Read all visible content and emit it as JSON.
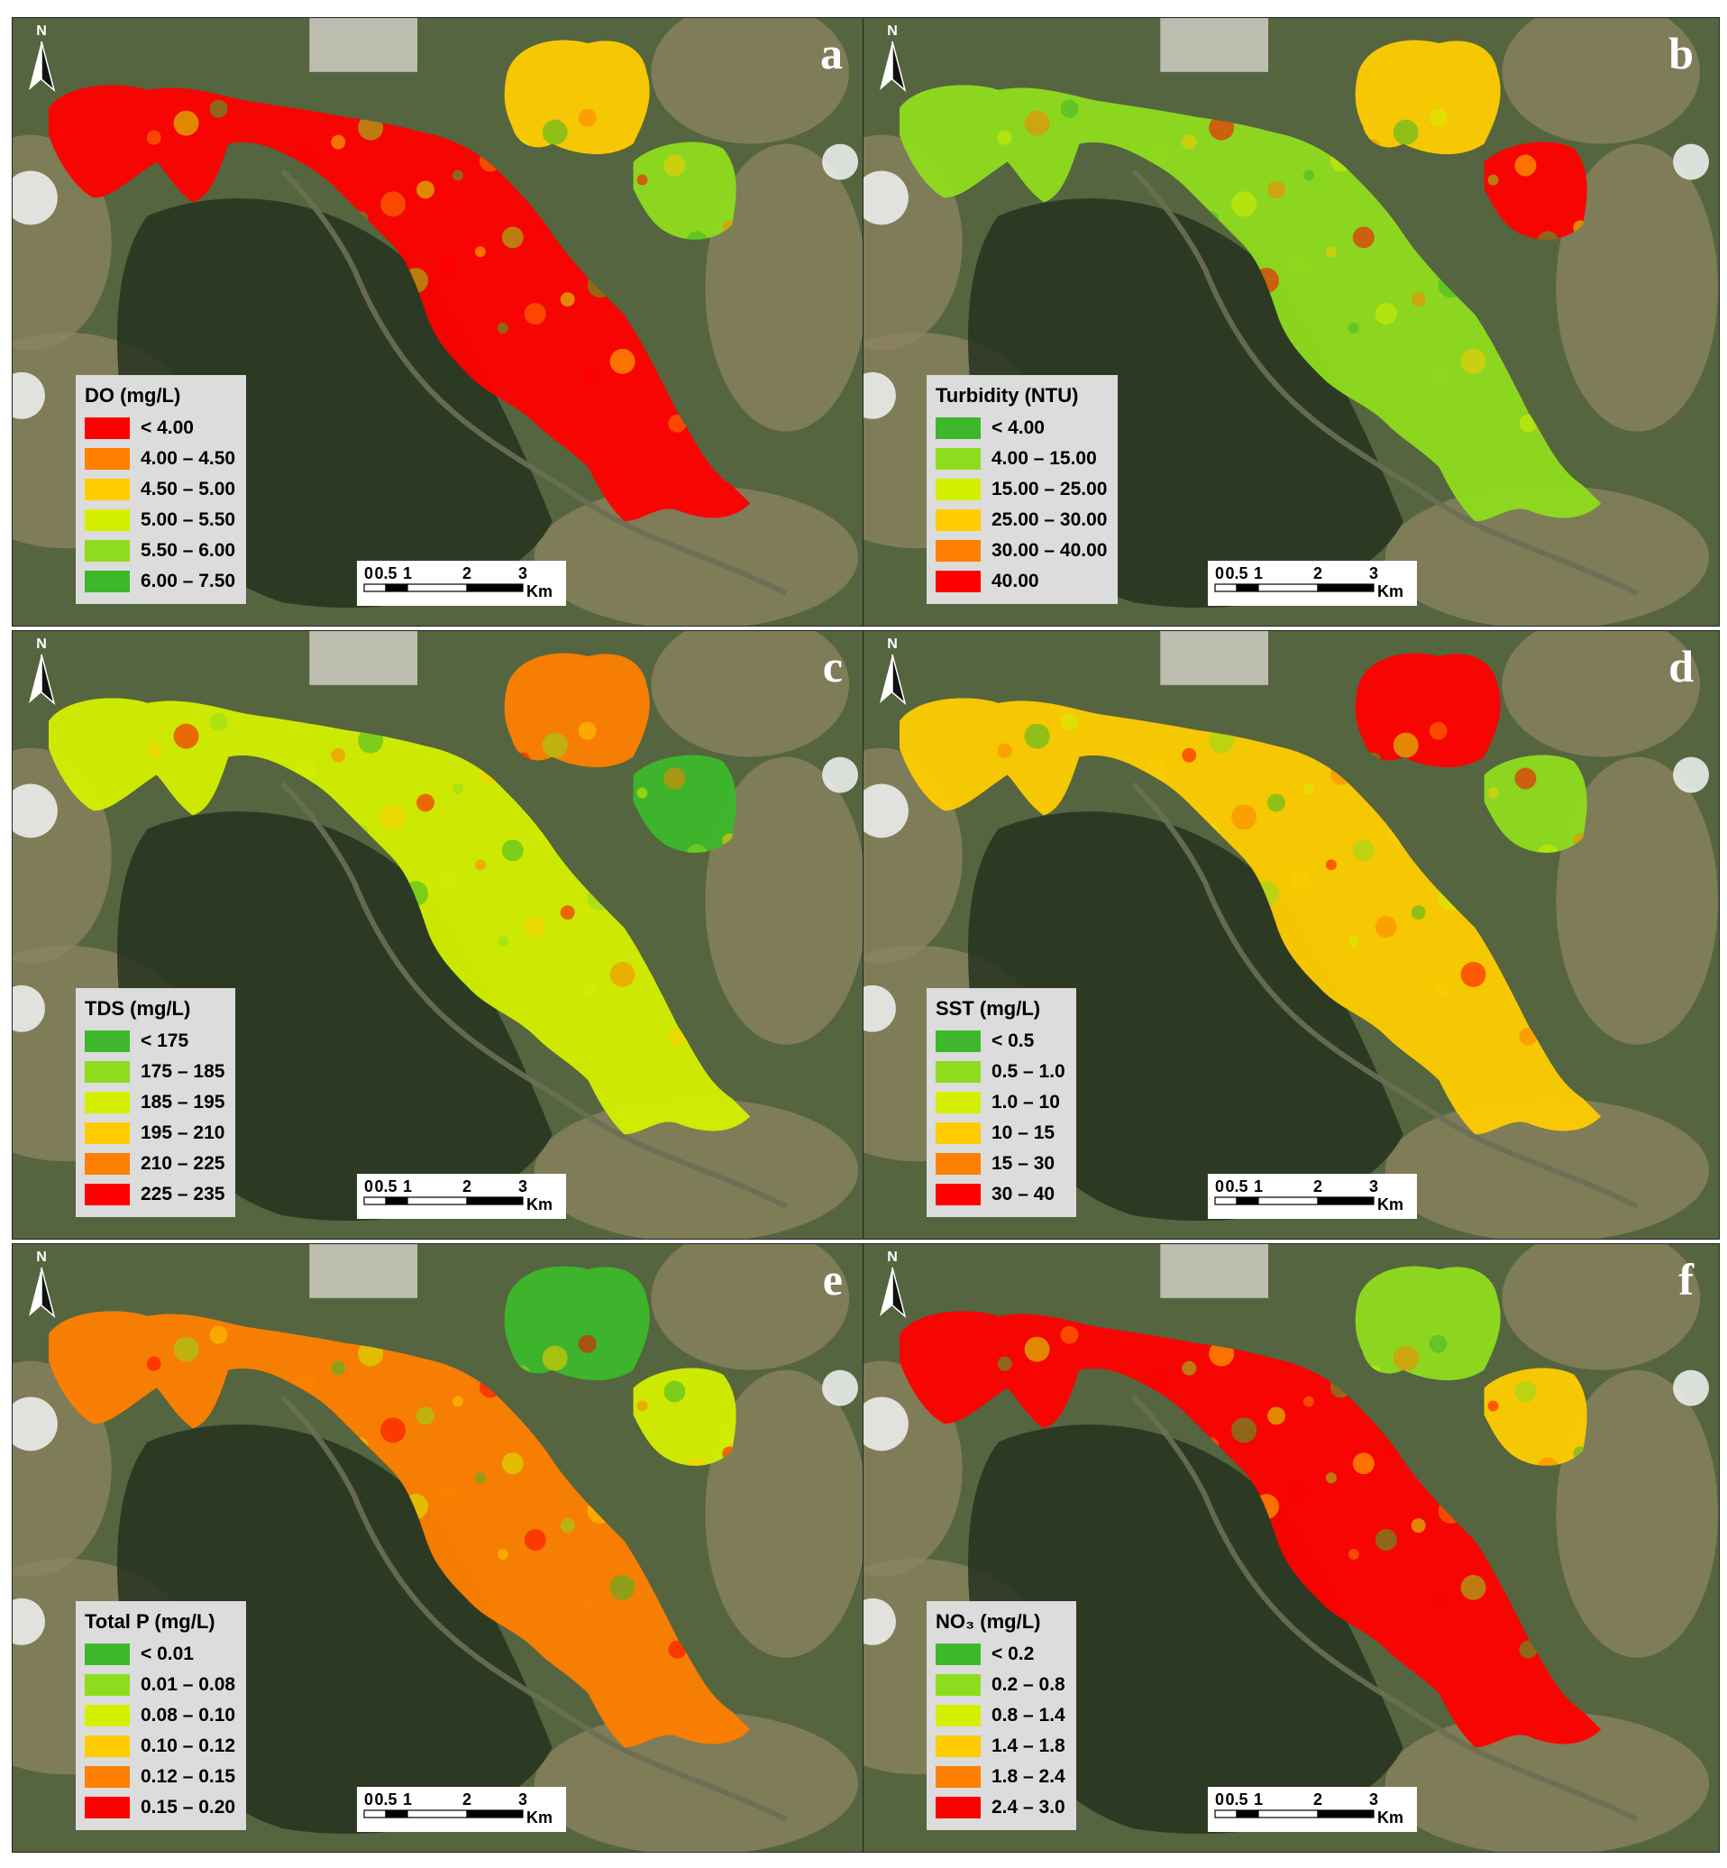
{
  "north_label": "N",
  "scale": {
    "tick_labels": [
      "0",
      "0.5",
      "1",
      "2",
      "3"
    ],
    "unit": "Km"
  },
  "panels": [
    {
      "letter": "a",
      "legend_title": "DO (mg/L)",
      "classes": [
        {
          "label": "< 4.00",
          "color": "#ff0000"
        },
        {
          "label": "4.00 – 4.50",
          "color": "#ff7f00"
        },
        {
          "label": "4.50 – 5.00",
          "color": "#ffcc00"
        },
        {
          "label": "5.00 – 5.50",
          "color": "#d4f000"
        },
        {
          "label": "5.50 – 6.00",
          "color": "#8fdc1e"
        },
        {
          "label": "6.00 – 7.50",
          "color": "#3cb82a"
        }
      ]
    },
    {
      "letter": "b",
      "legend_title": "Turbidity (NTU)",
      "classes": [
        {
          "label": "< 4.00",
          "color": "#3cb82a"
        },
        {
          "label": "4.00 – 15.00",
          "color": "#8fdc1e"
        },
        {
          "label": "15.00 – 25.00",
          "color": "#d4f000"
        },
        {
          "label": "25.00 – 30.00",
          "color": "#ffcc00"
        },
        {
          "label": "30.00 – 40.00",
          "color": "#ff7f00"
        },
        {
          "label": "40.00",
          "color": "#ff0000"
        }
      ]
    },
    {
      "letter": "c",
      "legend_title": "TDS (mg/L)",
      "classes": [
        {
          "label": "< 175",
          "color": "#3cb82a"
        },
        {
          "label": "175 – 185",
          "color": "#8fdc1e"
        },
        {
          "label": "185 – 195",
          "color": "#d4f000"
        },
        {
          "label": "195 – 210",
          "color": "#ffcc00"
        },
        {
          "label": "210 – 225",
          "color": "#ff7f00"
        },
        {
          "label": "225 – 235",
          "color": "#ff0000"
        }
      ]
    },
    {
      "letter": "d",
      "legend_title": "SST (mg/L)",
      "classes": [
        {
          "label": "< 0.5",
          "color": "#3cb82a"
        },
        {
          "label": "0.5 – 1.0",
          "color": "#8fdc1e"
        },
        {
          "label": "1.0 – 10",
          "color": "#d4f000"
        },
        {
          "label": "10 – 15",
          "color": "#ffcc00"
        },
        {
          "label": "15 – 30",
          "color": "#ff7f00"
        },
        {
          "label": "30 – 40",
          "color": "#ff0000"
        }
      ]
    },
    {
      "letter": "e",
      "legend_title": "Total P (mg/L)",
      "classes": [
        {
          "label": "< 0.01",
          "color": "#3cb82a"
        },
        {
          "label": "0.01 – 0.08",
          "color": "#8fdc1e"
        },
        {
          "label": "0.08 – 0.10",
          "color": "#d4f000"
        },
        {
          "label": "0.10 – 0.12",
          "color": "#ffcc00"
        },
        {
          "label": "0.12 – 0.15",
          "color": "#ff7f00"
        },
        {
          "label": "0.15 – 0.20",
          "color": "#ff0000"
        }
      ]
    },
    {
      "letter": "f",
      "legend_title": "NO₃ (mg/L)",
      "classes": [
        {
          "label": "< 0.2",
          "color": "#3cb82a"
        },
        {
          "label": "0.2 – 0.8",
          "color": "#8fdc1e"
        },
        {
          "label": "0.8 – 1.4",
          "color": "#d4f000"
        },
        {
          "label": "1.4 – 1.8",
          "color": "#ffcc00"
        },
        {
          "label": "1.8 – 2.4",
          "color": "#ff7f00"
        },
        {
          "label": "2.4 – 3.0",
          "color": "#ff0000"
        }
      ]
    }
  ],
  "colors": {
    "terrain_base": "#55653f",
    "terrain_dark": "#26331f",
    "terrain_field": "#8d8462",
    "town": "#c9c6bc",
    "cloud": "#f2f4f6"
  }
}
